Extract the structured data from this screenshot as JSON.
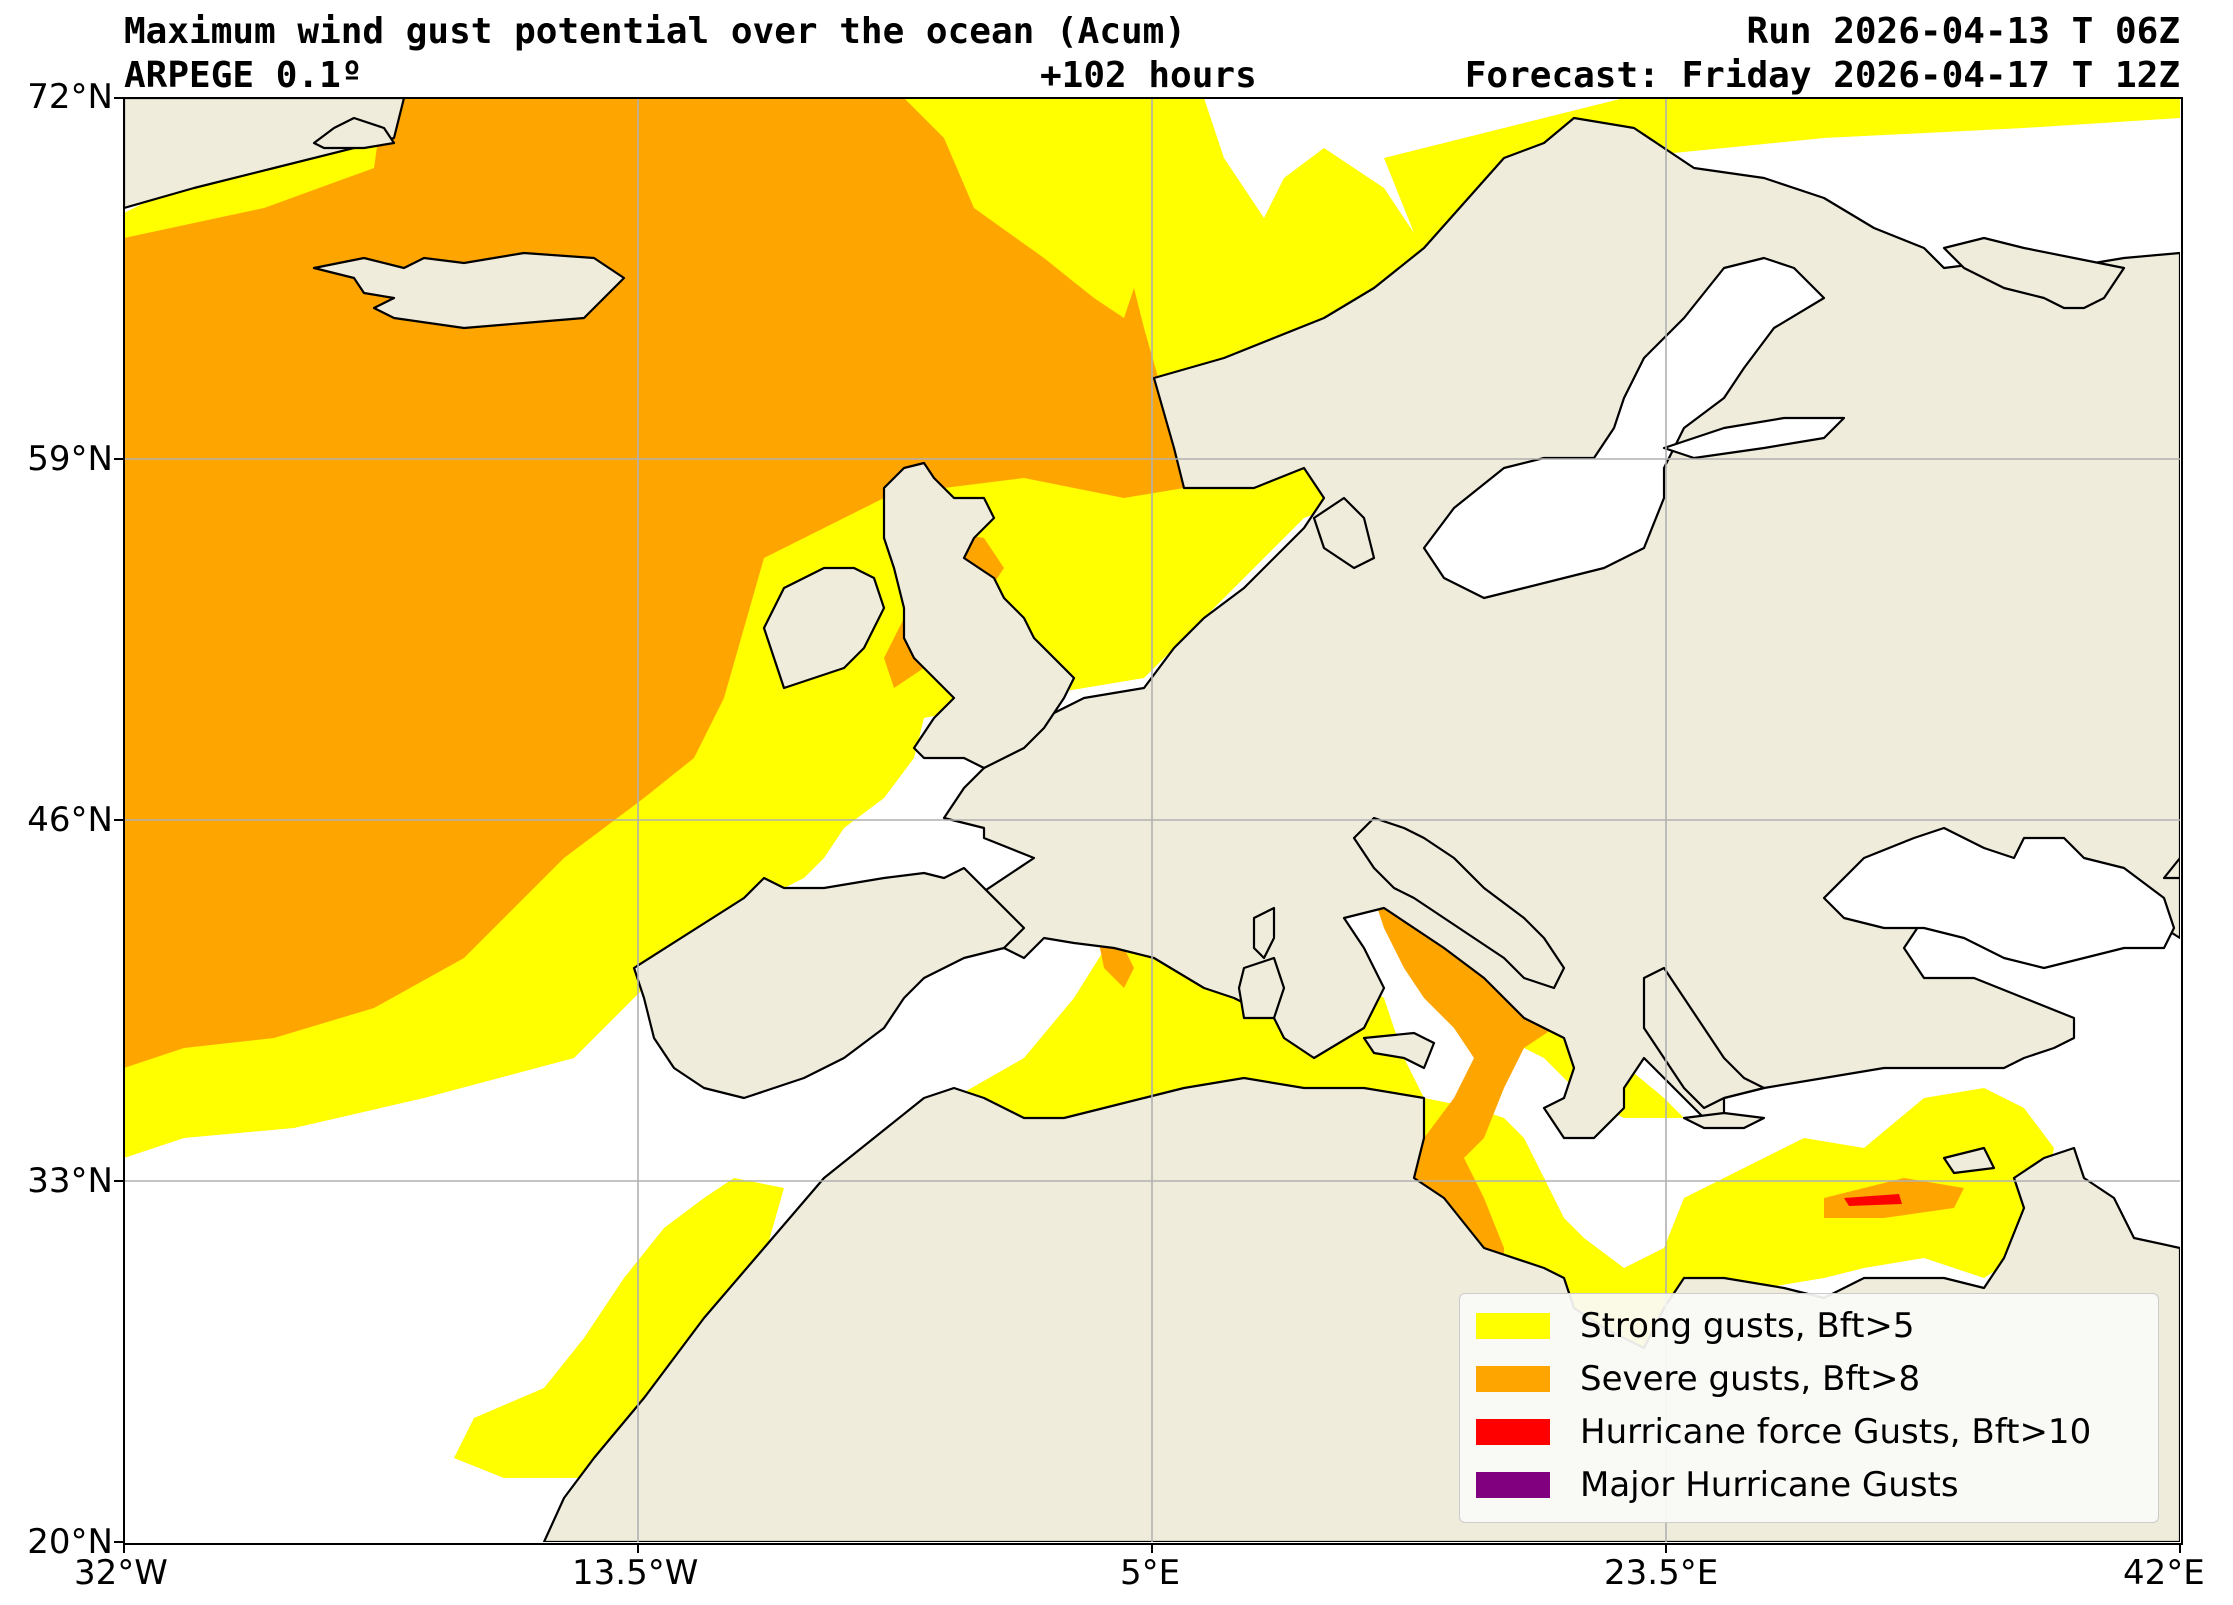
{
  "header": {
    "title": "Maximum wind gust potential over the ocean (Acum)",
    "model": "ARPEGE 0.1º",
    "lead_time": "+102 hours",
    "run": "Run 2026-04-13 T 06Z",
    "forecast": "Forecast: Friday 2026-04-17 T 12Z"
  },
  "axes": {
    "lat_ticks": [
      "72°N",
      "59°N",
      "46°N",
      "33°N",
      "20°N"
    ],
    "lon_ticks": [
      "32°W",
      "13.5°W",
      "5°E",
      "23.5°E",
      "42°E"
    ],
    "lat_range": [
      20,
      72
    ],
    "lon_range": [
      -32,
      42
    ],
    "grid": true
  },
  "legend": {
    "placement": "bottom-right",
    "items": [
      {
        "label": "Strong gusts, Bft>5",
        "color": "#ffff00"
      },
      {
        "label": "Severe gusts, Bft>8",
        "color": "#ffa500"
      },
      {
        "label": "Hurricane force Gusts, Bft>10",
        "color": "#ff0000"
      },
      {
        "label": "Major Hurricane Gusts",
        "color": "#800080"
      }
    ]
  },
  "colors": {
    "land": "#efecdc",
    "ocean": "#ffffff",
    "coastline": "#000000",
    "gridline": "#b0b0b0"
  }
}
